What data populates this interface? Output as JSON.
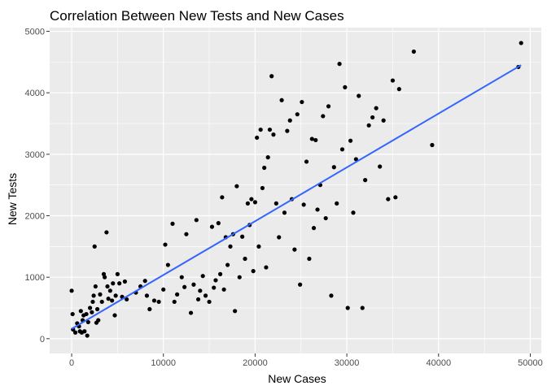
{
  "chart_data": {
    "type": "scatter",
    "title": "Correlation Between New Tests and New Cases",
    "xlabel": "New Cases",
    "ylabel": "New Tests",
    "xlim": [
      -2400,
      51200
    ],
    "ylim": [
      -240,
      5060
    ],
    "x_ticks": [
      0,
      10000,
      20000,
      30000,
      40000,
      50000
    ],
    "x_tick_labels": [
      "0",
      "10000",
      "20000",
      "30000",
      "40000",
      "50000"
    ],
    "y_ticks": [
      0,
      1000,
      2000,
      3000,
      4000,
      5000
    ],
    "y_tick_labels": [
      "0",
      "1000",
      "2000",
      "3000",
      "4000",
      "5000"
    ],
    "grid": true,
    "background": "#ebebeb",
    "point_color": "#000000",
    "trend_color": "#3366ff",
    "points": [
      [
        0,
        780
      ],
      [
        100,
        400
      ],
      [
        150,
        150
      ],
      [
        400,
        100
      ],
      [
        600,
        250
      ],
      [
        800,
        200
      ],
      [
        900,
        120
      ],
      [
        1000,
        450
      ],
      [
        1100,
        100
      ],
      [
        1200,
        300
      ],
      [
        1300,
        380
      ],
      [
        1400,
        120
      ],
      [
        1600,
        400
      ],
      [
        1700,
        50
      ],
      [
        1800,
        270
      ],
      [
        2000,
        500
      ],
      [
        2200,
        430
      ],
      [
        2300,
        600
      ],
      [
        2400,
        700
      ],
      [
        2500,
        1500
      ],
      [
        2600,
        850
      ],
      [
        2700,
        260
      ],
      [
        2800,
        480
      ],
      [
        2900,
        300
      ],
      [
        3100,
        720
      ],
      [
        3300,
        600
      ],
      [
        3500,
        1050
      ],
      [
        3600,
        1000
      ],
      [
        3800,
        1730
      ],
      [
        3900,
        850
      ],
      [
        4000,
        650
      ],
      [
        4200,
        780
      ],
      [
        4400,
        620
      ],
      [
        4500,
        900
      ],
      [
        4700,
        380
      ],
      [
        4800,
        700
      ],
      [
        5000,
        1050
      ],
      [
        5200,
        900
      ],
      [
        5500,
        680
      ],
      [
        5800,
        930
      ],
      [
        6000,
        640
      ],
      [
        7000,
        750
      ],
      [
        7500,
        850
      ],
      [
        8000,
        940
      ],
      [
        8200,
        700
      ],
      [
        8500,
        480
      ],
      [
        9000,
        620
      ],
      [
        9500,
        600
      ],
      [
        10000,
        800
      ],
      [
        10200,
        1530
      ],
      [
        10500,
        1200
      ],
      [
        11000,
        1870
      ],
      [
        11200,
        600
      ],
      [
        11500,
        720
      ],
      [
        12000,
        1000
      ],
      [
        12300,
        840
      ],
      [
        12500,
        1700
      ],
      [
        13000,
        420
      ],
      [
        13300,
        880
      ],
      [
        13600,
        1930
      ],
      [
        13800,
        640
      ],
      [
        14000,
        780
      ],
      [
        14300,
        1020
      ],
      [
        14600,
        700
      ],
      [
        15000,
        600
      ],
      [
        15300,
        1820
      ],
      [
        15500,
        830
      ],
      [
        15700,
        950
      ],
      [
        16000,
        1880
      ],
      [
        16200,
        1050
      ],
      [
        16400,
        2300
      ],
      [
        16600,
        800
      ],
      [
        16800,
        1650
      ],
      [
        17000,
        1200
      ],
      [
        17300,
        1500
      ],
      [
        17600,
        1700
      ],
      [
        17800,
        450
      ],
      [
        18000,
        2480
      ],
      [
        18300,
        1000
      ],
      [
        18600,
        1660
      ],
      [
        18900,
        1300
      ],
      [
        19200,
        2200
      ],
      [
        19400,
        1850
      ],
      [
        19600,
        2270
      ],
      [
        19800,
        1100
      ],
      [
        20000,
        2220
      ],
      [
        20200,
        3270
      ],
      [
        20400,
        1500
      ],
      [
        20600,
        3400
      ],
      [
        20800,
        2450
      ],
      [
        21000,
        2780
      ],
      [
        21200,
        1160
      ],
      [
        21400,
        2950
      ],
      [
        21600,
        3400
      ],
      [
        21800,
        4270
      ],
      [
        22000,
        3320
      ],
      [
        22300,
        2200
      ],
      [
        22600,
        1650
      ],
      [
        22900,
        3880
      ],
      [
        23200,
        2050
      ],
      [
        23500,
        3380
      ],
      [
        23800,
        3550
      ],
      [
        24000,
        2270
      ],
      [
        24300,
        1450
      ],
      [
        24600,
        3650
      ],
      [
        24900,
        880
      ],
      [
        25100,
        3850
      ],
      [
        25300,
        2180
      ],
      [
        25600,
        2880
      ],
      [
        25900,
        1300
      ],
      [
        26200,
        3250
      ],
      [
        26400,
        1800
      ],
      [
        26600,
        3230
      ],
      [
        26800,
        2100
      ],
      [
        27100,
        2500
      ],
      [
        27400,
        3620
      ],
      [
        27700,
        1960
      ],
      [
        28000,
        3780
      ],
      [
        28300,
        700
      ],
      [
        28600,
        2790
      ],
      [
        28900,
        2200
      ],
      [
        29200,
        4470
      ],
      [
        29500,
        3080
      ],
      [
        29800,
        4090
      ],
      [
        30100,
        500
      ],
      [
        30400,
        3220
      ],
      [
        30700,
        2050
      ],
      [
        31000,
        2920
      ],
      [
        31300,
        3950
      ],
      [
        31700,
        500
      ],
      [
        32000,
        2580
      ],
      [
        32400,
        3470
      ],
      [
        32800,
        3600
      ],
      [
        33200,
        3750
      ],
      [
        33600,
        2800
      ],
      [
        34000,
        3550
      ],
      [
        34500,
        2270
      ],
      [
        35000,
        4200
      ],
      [
        35300,
        2300
      ],
      [
        35700,
        4060
      ],
      [
        37300,
        4670
      ],
      [
        39300,
        3150
      ],
      [
        48700,
        4420
      ],
      [
        49000,
        4810
      ]
    ],
    "trend": {
      "x": [
        0,
        49000
      ],
      "y": [
        160,
        4450
      ]
    }
  }
}
